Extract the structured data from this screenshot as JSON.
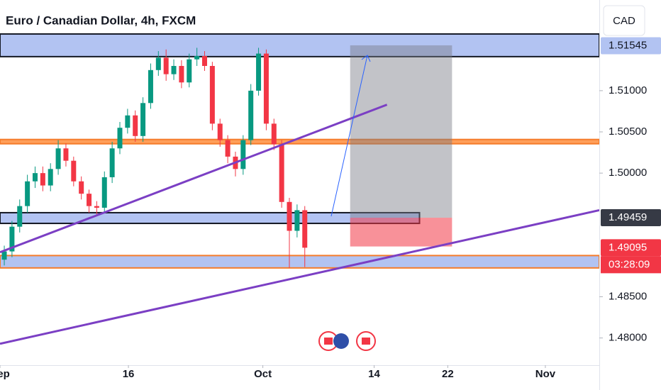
{
  "chart_data": {
    "type": "candlestick",
    "title": "Euro / Canadian Dollar, 4h, FXCM",
    "currency": "CAD",
    "countdown": "03:28:09",
    "xlim": [
      0,
      70
    ],
    "ylim": [
      1.4767,
      1.521
    ],
    "xticks": [
      {
        "value": 0,
        "label": "Sep"
      },
      {
        "value": 15,
        "label": "16"
      },
      {
        "value": 30.7,
        "label": "Oct"
      },
      {
        "value": 43.7,
        "label": "14"
      },
      {
        "value": 52.3,
        "label": "22"
      },
      {
        "value": 63.7,
        "label": "Nov"
      }
    ],
    "yticks": [
      {
        "value": 1.51,
        "label": "1.51000"
      },
      {
        "value": 1.505,
        "label": "1.50500"
      },
      {
        "value": 1.5,
        "label": "1.50000"
      },
      {
        "value": 1.485,
        "label": "1.48500"
      },
      {
        "value": 1.48,
        "label": "1.48000"
      }
    ],
    "price_labels": [
      {
        "value": 1.51545,
        "label": "1.51545",
        "color": "#b2c3f2"
      },
      {
        "value": 1.49459,
        "label": "1.49459",
        "color": "#363a45"
      },
      {
        "value": 1.49095,
        "label": "1.49095",
        "color": "#f23645"
      }
    ],
    "up_color": "#089981",
    "down_color": "#f23645",
    "x": [
      0.5,
      1.4,
      2.3,
      3.2,
      4.1,
      5.0,
      5.9,
      6.8,
      7.7,
      8.6,
      9.5,
      10.4,
      11.3,
      12.2,
      13.1,
      14.0,
      14.9,
      15.8,
      16.7,
      17.6,
      18.5,
      19.4,
      20.3,
      21.2,
      22.1,
      23.0,
      23.9,
      24.8,
      25.7,
      26.6,
      27.5,
      28.4,
      29.3,
      30.2,
      31.1,
      32.0,
      32.9,
      33.8,
      34.7,
      35.6
    ],
    "open": [
      1.4895,
      1.4905,
      1.4935,
      1.496,
      1.499,
      1.5,
      1.4985,
      1.5005,
      1.503,
      1.5015,
      1.499,
      1.4975,
      1.496,
      1.4958,
      1.4995,
      1.503,
      1.5055,
      1.507,
      1.5045,
      1.5085,
      1.5125,
      1.514,
      1.512,
      1.513,
      1.511,
      1.5138,
      1.5142,
      1.513,
      1.506,
      1.504,
      1.502,
      1.5005,
      1.504,
      1.51,
      1.5145,
      1.506,
      1.5035,
      1.4965,
      1.493,
      1.4955
    ],
    "high": [
      1.4912,
      1.4942,
      1.4968,
      1.4998,
      1.5008,
      1.5008,
      1.5012,
      1.504,
      1.5036,
      1.502,
      1.4996,
      1.498,
      1.4966,
      1.5002,
      1.5038,
      1.5062,
      1.5078,
      1.5076,
      1.5092,
      1.5133,
      1.5148,
      1.515,
      1.5138,
      1.5137,
      1.5145,
      1.5152,
      1.5148,
      1.5135,
      1.5066,
      1.5046,
      1.5026,
      1.5046,
      1.5108,
      1.5152,
      1.515,
      1.5066,
      1.504,
      1.497,
      1.4962,
      1.496
    ],
    "low": [
      1.4888,
      1.4898,
      1.4928,
      1.4952,
      1.4982,
      1.4978,
      1.4978,
      1.4998,
      1.5008,
      1.4984,
      1.4968,
      1.4952,
      1.495,
      1.4951,
      1.4988,
      1.5023,
      1.5048,
      1.5038,
      1.5038,
      1.5078,
      1.5118,
      1.5112,
      1.5113,
      1.5103,
      1.5104,
      1.513,
      1.5124,
      1.5052,
      1.5032,
      1.5012,
      1.4996,
      1.4998,
      1.5034,
      1.5094,
      1.5052,
      1.5028,
      1.4958,
      1.4885,
      1.4922,
      1.4886
    ],
    "close": [
      1.4905,
      1.4935,
      1.496,
      1.499,
      1.5,
      1.4985,
      1.5005,
      1.503,
      1.5015,
      1.499,
      1.4975,
      1.496,
      1.4958,
      1.4995,
      1.503,
      1.5055,
      1.507,
      1.5045,
      1.5085,
      1.5125,
      1.514,
      1.512,
      1.513,
      1.511,
      1.5138,
      1.5142,
      1.513,
      1.506,
      1.504,
      1.502,
      1.5005,
      1.504,
      1.51,
      1.5145,
      1.506,
      1.5035,
      1.4965,
      1.493,
      1.4955,
      1.49095
    ],
    "zones": [
      {
        "low": 1.51413,
        "high": 1.51688,
        "x_end": 70,
        "color": "#b2c3f2",
        "border": "#131722"
      },
      {
        "low": 1.50356,
        "high": 1.50408,
        "x_end": 70,
        "color": "#ff9f5a",
        "border": "#f57c2b"
      },
      {
        "low": 1.4939,
        "high": 1.4952,
        "x_end": 49,
        "color": "#b2c3f2",
        "border": "#131722"
      },
      {
        "low": 1.4885,
        "high": 1.49,
        "x_end": 70,
        "color": "#b2c3f2",
        "border": "#f57c2b"
      }
    ],
    "trendlines": [
      {
        "x1": 0,
        "y1": 1.4904,
        "x2": 45.2,
        "y2": 1.5083,
        "color": "#7b3fc4"
      },
      {
        "x1": 0,
        "y1": 1.4793,
        "x2": 70,
        "y2": 1.4955,
        "color": "#7b3fc4"
      }
    ],
    "position": {
      "x_start": 40.9,
      "x_end": 52.8,
      "target": 1.5155,
      "entry": 1.49459,
      "stop": 1.4911
    }
  }
}
